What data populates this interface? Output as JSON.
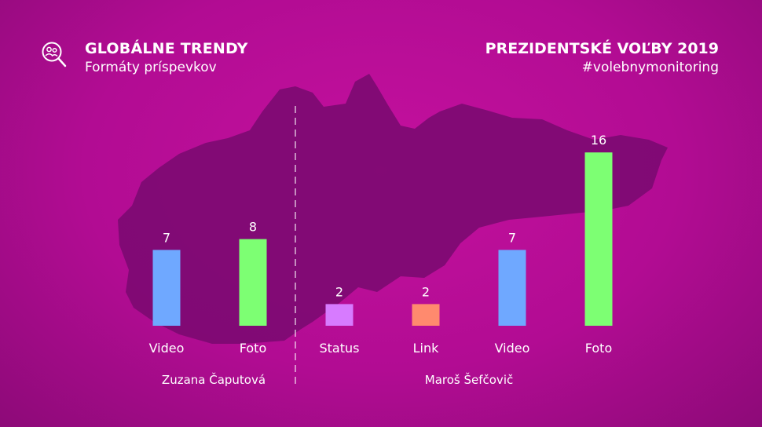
{
  "header": {
    "left_title": "GLOBÁLNE TRENDY",
    "left_subtitle": "Formáty príspevkov",
    "right_title": "PREZIDENTSKÉ VOĽBY 2019",
    "right_subtitle": "#volebnymonitoring",
    "logo_icon": "magnifier-people-icon"
  },
  "chart_data": {
    "type": "bar",
    "title": "GLOBÁLNE TRENDY",
    "subtitle": "Formáty príspevkov",
    "groups": [
      {
        "name": "Zuzana Čaputová",
        "categories": [
          "Video",
          "Foto"
        ],
        "values": [
          7,
          8
        ],
        "colors": [
          "#6fa8ff",
          "#7dff73"
        ]
      },
      {
        "name": "Maroš Šefčovič",
        "categories": [
          "Status",
          "Link",
          "Video",
          "Foto"
        ],
        "values": [
          2,
          2,
          7,
          16
        ],
        "colors": [
          "#d77bff",
          "#ff8a6e",
          "#6fa8ff",
          "#7dff73"
        ]
      }
    ],
    "ylim": [
      0,
      16
    ],
    "grid": false,
    "legend": "none",
    "background_color": "#b80d96",
    "map_color": "#7d0a72"
  }
}
